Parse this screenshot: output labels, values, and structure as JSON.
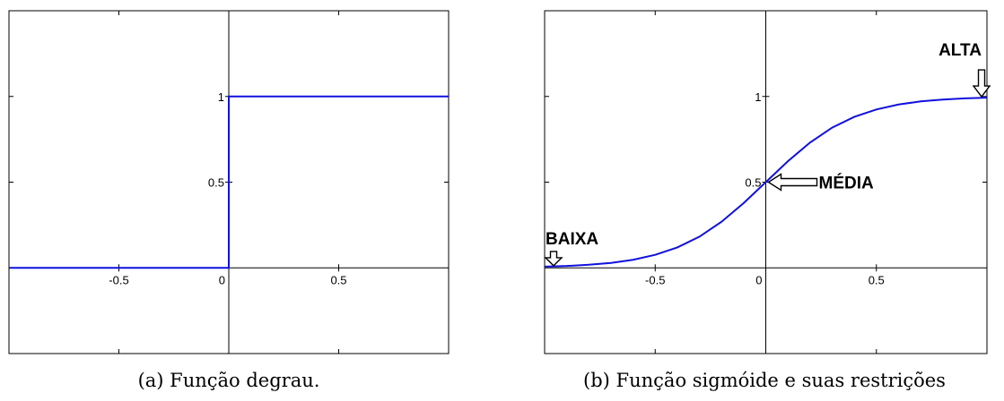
{
  "chart_data": [
    {
      "type": "line",
      "caption": "(a) Função degrau.",
      "xlim": [
        -1,
        1
      ],
      "ylim": [
        -0.5,
        1.5
      ],
      "x_ticks": [
        -0.5,
        0,
        0.5
      ],
      "x_tick_labels": [
        "-0.5",
        "0",
        "0.5"
      ],
      "y_ticks": [
        0.5,
        1
      ],
      "y_tick_labels": [
        "0.5",
        "1"
      ],
      "grid": false,
      "series": [
        {
          "x": [
            -1,
            0,
            0,
            1
          ],
          "y": [
            0,
            0,
            1,
            1
          ],
          "color": "#1010e0"
        }
      ],
      "annotations": []
    },
    {
      "type": "line",
      "caption": "(b) Função sigmóide e suas restrições",
      "xlim": [
        -1,
        1
      ],
      "ylim": [
        -0.5,
        1.5
      ],
      "x_ticks": [
        -0.5,
        0,
        0.5
      ],
      "x_tick_labels": [
        "-0.5",
        "0",
        "0.5"
      ],
      "y_ticks": [
        0.5,
        1
      ],
      "y_tick_labels": [
        "0.5",
        "1"
      ],
      "grid": false,
      "series": [
        {
          "x": [
            -1,
            -0.9,
            -0.8,
            -0.7,
            -0.6,
            -0.5,
            -0.4,
            -0.3,
            -0.2,
            -0.1,
            0,
            0.1,
            0.2,
            0.3,
            0.4,
            0.5,
            0.6,
            0.7,
            0.8,
            0.9,
            1
          ],
          "y": [
            0.007,
            0.011,
            0.018,
            0.029,
            0.047,
            0.076,
            0.119,
            0.182,
            0.269,
            0.378,
            0.5,
            0.622,
            0.731,
            0.818,
            0.881,
            0.924,
            0.953,
            0.971,
            0.982,
            0.989,
            0.993
          ],
          "color": "#1010e0"
        }
      ],
      "annotations": [
        {
          "text": "BAIXA",
          "x": -1,
          "y": 0.007,
          "arrow": "down"
        },
        {
          "text": "MÉDIA",
          "x": 0,
          "y": 0.5,
          "arrow": "left"
        },
        {
          "text": "ALTA",
          "x": 1,
          "y": 0.993,
          "arrow": "down"
        }
      ]
    }
  ]
}
